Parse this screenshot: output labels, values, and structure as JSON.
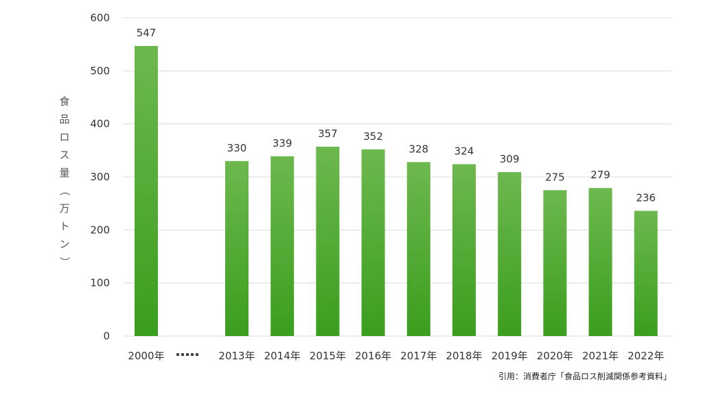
{
  "chart_data": {
    "type": "bar",
    "title": "",
    "ylabel": "食品ロス量（万トン）",
    "xlabel": "",
    "ylim": [
      0,
      600
    ],
    "yticks": [
      0,
      100,
      200,
      300,
      400,
      500,
      600
    ],
    "categories": [
      "2000年",
      "2013年",
      "2014年",
      "2015年",
      "2016年",
      "2017年",
      "2018年",
      "2019年",
      "2020年",
      "2021年",
      "2022年"
    ],
    "values": [
      547,
      330,
      339,
      357,
      352,
      328,
      324,
      309,
      275,
      279,
      236
    ],
    "axis_break_after": "2000年",
    "grid": true,
    "legend": "none",
    "bar_color": "#4aa82c"
  },
  "source": "引用：消費者庁「食品ロス削減関係参考資料」"
}
